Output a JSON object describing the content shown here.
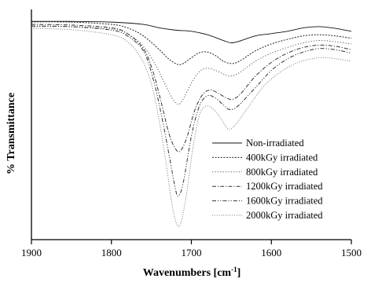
{
  "chart_data": {
    "type": "line",
    "xlabel": "Wavenumbers [cm",
    "xlabel_sup": "-1",
    "xlabel_close": "]",
    "ylabel": "% Transmittance",
    "xlim": [
      1900,
      1500
    ],
    "x_reversed": true,
    "ylim": [
      0,
      1
    ],
    "y_ticks_shown": false,
    "x_ticks": [
      1900,
      1800,
      1700,
      1600,
      1500
    ],
    "x_tick_labels": [
      "1900",
      "1800",
      "1700",
      "1600",
      "1500"
    ],
    "grid": false,
    "legend_position": "lower-right",
    "series": [
      {
        "name": "Non-irradiated",
        "style": "solid",
        "color": "#111111",
        "points": [
          [
            1900,
            0.948
          ],
          [
            1850,
            0.948
          ],
          [
            1800,
            0.945
          ],
          [
            1760,
            0.935
          ],
          [
            1740,
            0.92
          ],
          [
            1720,
            0.91
          ],
          [
            1700,
            0.905
          ],
          [
            1680,
            0.89
          ],
          [
            1660,
            0.865
          ],
          [
            1650,
            0.855
          ],
          [
            1640,
            0.862
          ],
          [
            1620,
            0.885
          ],
          [
            1600,
            0.895
          ],
          [
            1580,
            0.905
          ],
          [
            1560,
            0.92
          ],
          [
            1540,
            0.925
          ],
          [
            1520,
            0.918
          ],
          [
            1500,
            0.905
          ]
        ]
      },
      {
        "name": "400kGy irradiated",
        "style": "dotted-dense",
        "color": "#222222",
        "points": [
          [
            1900,
            0.946
          ],
          [
            1850,
            0.945
          ],
          [
            1800,
            0.935
          ],
          [
            1780,
            0.92
          ],
          [
            1760,
            0.885
          ],
          [
            1740,
            0.825
          ],
          [
            1730,
            0.79
          ],
          [
            1720,
            0.765
          ],
          [
            1712,
            0.762
          ],
          [
            1700,
            0.79
          ],
          [
            1690,
            0.812
          ],
          [
            1680,
            0.815
          ],
          [
            1670,
            0.8
          ],
          [
            1660,
            0.775
          ],
          [
            1650,
            0.765
          ],
          [
            1640,
            0.775
          ],
          [
            1620,
            0.82
          ],
          [
            1600,
            0.85
          ],
          [
            1580,
            0.87
          ],
          [
            1560,
            0.885
          ],
          [
            1540,
            0.89
          ],
          [
            1520,
            0.885
          ],
          [
            1500,
            0.875
          ]
        ]
      },
      {
        "name": "800kGy irradiated",
        "style": "dotted",
        "color": "#555555",
        "points": [
          [
            1900,
            0.925
          ],
          [
            1850,
            0.925
          ],
          [
            1800,
            0.915
          ],
          [
            1780,
            0.895
          ],
          [
            1760,
            0.84
          ],
          [
            1745,
            0.76
          ],
          [
            1735,
            0.69
          ],
          [
            1725,
            0.62
          ],
          [
            1718,
            0.59
          ],
          [
            1712,
            0.6
          ],
          [
            1700,
            0.68
          ],
          [
            1690,
            0.73
          ],
          [
            1680,
            0.745
          ],
          [
            1670,
            0.735
          ],
          [
            1660,
            0.72
          ],
          [
            1652,
            0.71
          ],
          [
            1640,
            0.725
          ],
          [
            1620,
            0.775
          ],
          [
            1600,
            0.81
          ],
          [
            1580,
            0.835
          ],
          [
            1560,
            0.855
          ],
          [
            1540,
            0.865
          ],
          [
            1520,
            0.86
          ],
          [
            1500,
            0.85
          ]
        ]
      },
      {
        "name": "1200kGy irradiated",
        "style": "dash-dot",
        "color": "#333333",
        "points": [
          [
            1900,
            0.935
          ],
          [
            1850,
            0.932
          ],
          [
            1800,
            0.92
          ],
          [
            1780,
            0.895
          ],
          [
            1760,
            0.83
          ],
          [
            1748,
            0.73
          ],
          [
            1738,
            0.6
          ],
          [
            1728,
            0.46
          ],
          [
            1720,
            0.395
          ],
          [
            1714,
            0.385
          ],
          [
            1706,
            0.44
          ],
          [
            1696,
            0.56
          ],
          [
            1686,
            0.63
          ],
          [
            1676,
            0.65
          ],
          [
            1666,
            0.635
          ],
          [
            1656,
            0.615
          ],
          [
            1648,
            0.61
          ],
          [
            1638,
            0.635
          ],
          [
            1620,
            0.71
          ],
          [
            1600,
            0.77
          ],
          [
            1580,
            0.81
          ],
          [
            1560,
            0.835
          ],
          [
            1540,
            0.845
          ],
          [
            1520,
            0.84
          ],
          [
            1500,
            0.825
          ]
        ]
      },
      {
        "name": "1600kGy irradiated",
        "style": "dash-dot-dot",
        "color": "#333333",
        "points": [
          [
            1900,
            0.928
          ],
          [
            1850,
            0.925
          ],
          [
            1800,
            0.91
          ],
          [
            1780,
            0.885
          ],
          [
            1760,
            0.82
          ],
          [
            1748,
            0.7
          ],
          [
            1738,
            0.55
          ],
          [
            1728,
            0.37
          ],
          [
            1720,
            0.22
          ],
          [
            1716,
            0.19
          ],
          [
            1710,
            0.25
          ],
          [
            1700,
            0.45
          ],
          [
            1690,
            0.58
          ],
          [
            1680,
            0.625
          ],
          [
            1670,
            0.615
          ],
          [
            1660,
            0.585
          ],
          [
            1652,
            0.565
          ],
          [
            1642,
            0.58
          ],
          [
            1620,
            0.66
          ],
          [
            1600,
            0.735
          ],
          [
            1580,
            0.785
          ],
          [
            1560,
            0.815
          ],
          [
            1540,
            0.83
          ],
          [
            1520,
            0.825
          ],
          [
            1500,
            0.81
          ]
        ]
      },
      {
        "name": "2000kGy irradiated",
        "style": "dotted-light",
        "color": "#777777",
        "points": [
          [
            1900,
            0.918
          ],
          [
            1850,
            0.912
          ],
          [
            1800,
            0.89
          ],
          [
            1780,
            0.86
          ],
          [
            1765,
            0.8
          ],
          [
            1752,
            0.7
          ],
          [
            1742,
            0.55
          ],
          [
            1732,
            0.34
          ],
          [
            1724,
            0.15
          ],
          [
            1718,
            0.065
          ],
          [
            1713,
            0.075
          ],
          [
            1706,
            0.2
          ],
          [
            1698,
            0.4
          ],
          [
            1690,
            0.54
          ],
          [
            1682,
            0.58
          ],
          [
            1672,
            0.565
          ],
          [
            1662,
            0.52
          ],
          [
            1654,
            0.48
          ],
          [
            1646,
            0.495
          ],
          [
            1630,
            0.57
          ],
          [
            1610,
            0.665
          ],
          [
            1590,
            0.725
          ],
          [
            1570,
            0.765
          ],
          [
            1550,
            0.785
          ],
          [
            1530,
            0.79
          ],
          [
            1500,
            0.775
          ]
        ]
      }
    ]
  }
}
